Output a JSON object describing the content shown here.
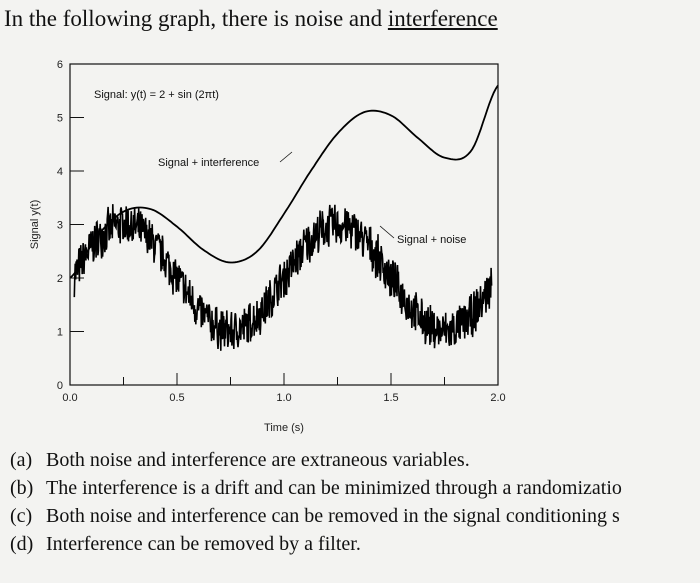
{
  "question": {
    "prefix": "In the following graph, there is noise and ",
    "underlined": "interference"
  },
  "options": [
    {
      "letter": "(a)",
      "text": "Both noise and interference are extraneous variables."
    },
    {
      "letter": "(b)",
      "text": "The interference is a drift and can be minimized through a randomizatio"
    },
    {
      "letter": "(c)",
      "text": "Both noise and interference can be removed in the signal conditioning s"
    },
    {
      "letter": "(d)",
      "text": "Interference can be removed by a filter."
    }
  ],
  "chart_data": {
    "type": "line",
    "xlabel": "Time (s)",
    "ylabel": "Signal y(t)",
    "xlim": [
      0,
      2.0
    ],
    "ylim": [
      0,
      6
    ],
    "x_ticks": [
      "0.0",
      "0.5",
      "1.0",
      "1.5",
      "2.0"
    ],
    "y_ticks": [
      "0",
      "1",
      "2",
      "3",
      "4",
      "5",
      "6"
    ],
    "grid": false,
    "series": [
      {
        "name": "Signal + interference",
        "color": "#000000",
        "x": [
          0,
          0.125,
          0.25,
          0.375,
          0.5,
          0.625,
          0.75,
          0.875,
          1.0,
          1.125,
          1.25,
          1.375,
          1.5,
          1.625,
          1.75,
          1.875,
          2.0
        ],
        "y": [
          2.0,
          2.77,
          3.24,
          3.29,
          2.96,
          2.52,
          2.29,
          2.5,
          3.2,
          4.0,
          4.7,
          5.1,
          5.04,
          4.62,
          4.25,
          4.38,
          5.6
        ]
      },
      {
        "name": "Signal + noise",
        "color": "#000000",
        "x": [
          0,
          0.125,
          0.25,
          0.375,
          0.5,
          0.625,
          0.75,
          0.875,
          1.0,
          1.125,
          1.25,
          1.375,
          1.5,
          1.625,
          1.75,
          1.875,
          2.0
        ],
        "y": [
          2.0,
          2.71,
          3.0,
          2.71,
          2.0,
          1.29,
          1.0,
          1.29,
          2.0,
          2.71,
          3.0,
          2.71,
          2.0,
          1.29,
          1.0,
          1.29,
          2.0
        ],
        "noise_amplitude": 0.45
      }
    ],
    "annotations": [
      {
        "text": "Signal: y(t) = 2 + sin (2πt)"
      },
      {
        "text": "Signal + interference"
      },
      {
        "text": "Signal + noise"
      }
    ]
  }
}
